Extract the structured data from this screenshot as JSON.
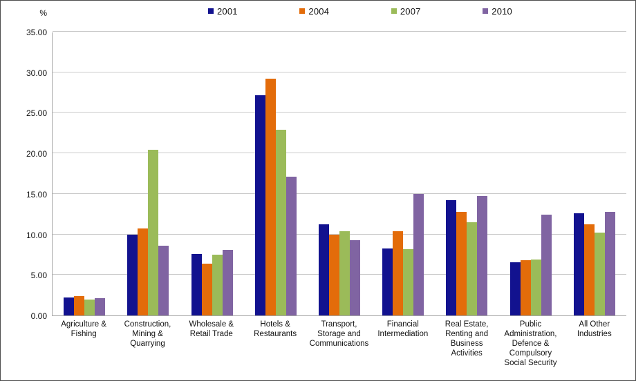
{
  "chart_data": {
    "type": "bar",
    "title": "",
    "xlabel": "",
    "ylabel": "%",
    "ylim": [
      0,
      35
    ],
    "ytick_step": 5,
    "ytick_decimals": 2,
    "grid": true,
    "legend_position": "top",
    "categories": [
      "Agriculture & Fishing",
      "Construction, Mining & Quarrying",
      "Wholesale & Retail Trade",
      "Hotels & Restaurants",
      "Transport, Storage and Communications",
      "Financial Intermediation",
      "Real Estate, Renting and Business Activities",
      "Public Administration, Defence & Compulsory Social Security",
      "All Other Industries"
    ],
    "series": [
      {
        "name": "2001",
        "color": "#12128f",
        "values": [
          2.2,
          10.0,
          7.6,
          27.2,
          11.2,
          8.3,
          14.2,
          6.6,
          12.6
        ]
      },
      {
        "name": "2004",
        "color": "#e36c0a",
        "values": [
          2.4,
          10.7,
          6.4,
          29.2,
          10.0,
          10.4,
          12.8,
          6.8,
          11.2
        ]
      },
      {
        "name": "2007",
        "color": "#9bbb59",
        "values": [
          2.0,
          20.4,
          7.5,
          22.9,
          10.4,
          8.2,
          11.5,
          6.9,
          10.2
        ]
      },
      {
        "name": "2010",
        "color": "#8064a2",
        "values": [
          2.1,
          8.6,
          8.1,
          17.1,
          9.3,
          15.0,
          14.7,
          12.4,
          12.8
        ]
      }
    ]
  }
}
